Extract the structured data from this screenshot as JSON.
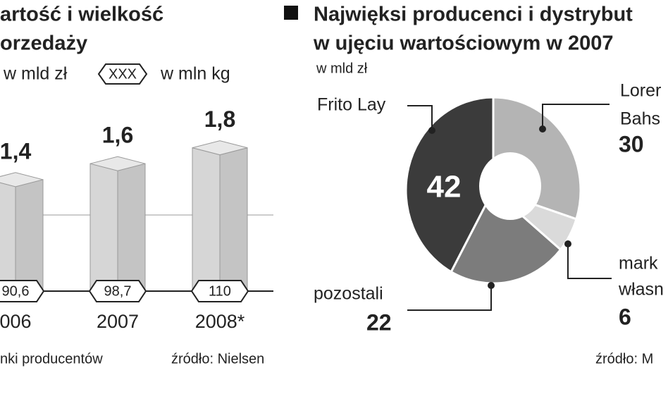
{
  "chart_data": [
    {
      "type": "bar",
      "title_lines": [
        "artość i wielkość",
        "orzedaży"
      ],
      "categories": [
        "006",
        "2007",
        "2008*"
      ],
      "series": [
        {
          "name": "w mld zł",
          "color": "#c4c4c4",
          "values": [
            1.4,
            1.6,
            1.8
          ],
          "value_labels": [
            "1,4",
            "1,6",
            "1,8"
          ]
        },
        {
          "name": "w mln kg",
          "marker_label": "XXX",
          "values": [
            90.6,
            98.7,
            110
          ],
          "value_labels": [
            "90,6",
            "98,7",
            "110"
          ]
        }
      ],
      "footnote": "nki producentów",
      "source": "źródło: Nielsen"
    },
    {
      "type": "donut",
      "title_lines": [
        "Najwięksi producenci i dystrybut",
        "w ujęciu wartościowym w 2007"
      ],
      "subtitle": "w mld zł",
      "categories": [
        [
          "Frito Lay"
        ],
        [
          "Lorer",
          "Bahs"
        ],
        [
          "mark",
          "własn"
        ],
        [
          "pozostali"
        ]
      ],
      "values": [
        42,
        30,
        6,
        22
      ],
      "colors": [
        "#3b3b3b",
        "#b4b4b4",
        "#dadada",
        "#7c7c7c"
      ],
      "source": "źródło: M"
    }
  ]
}
